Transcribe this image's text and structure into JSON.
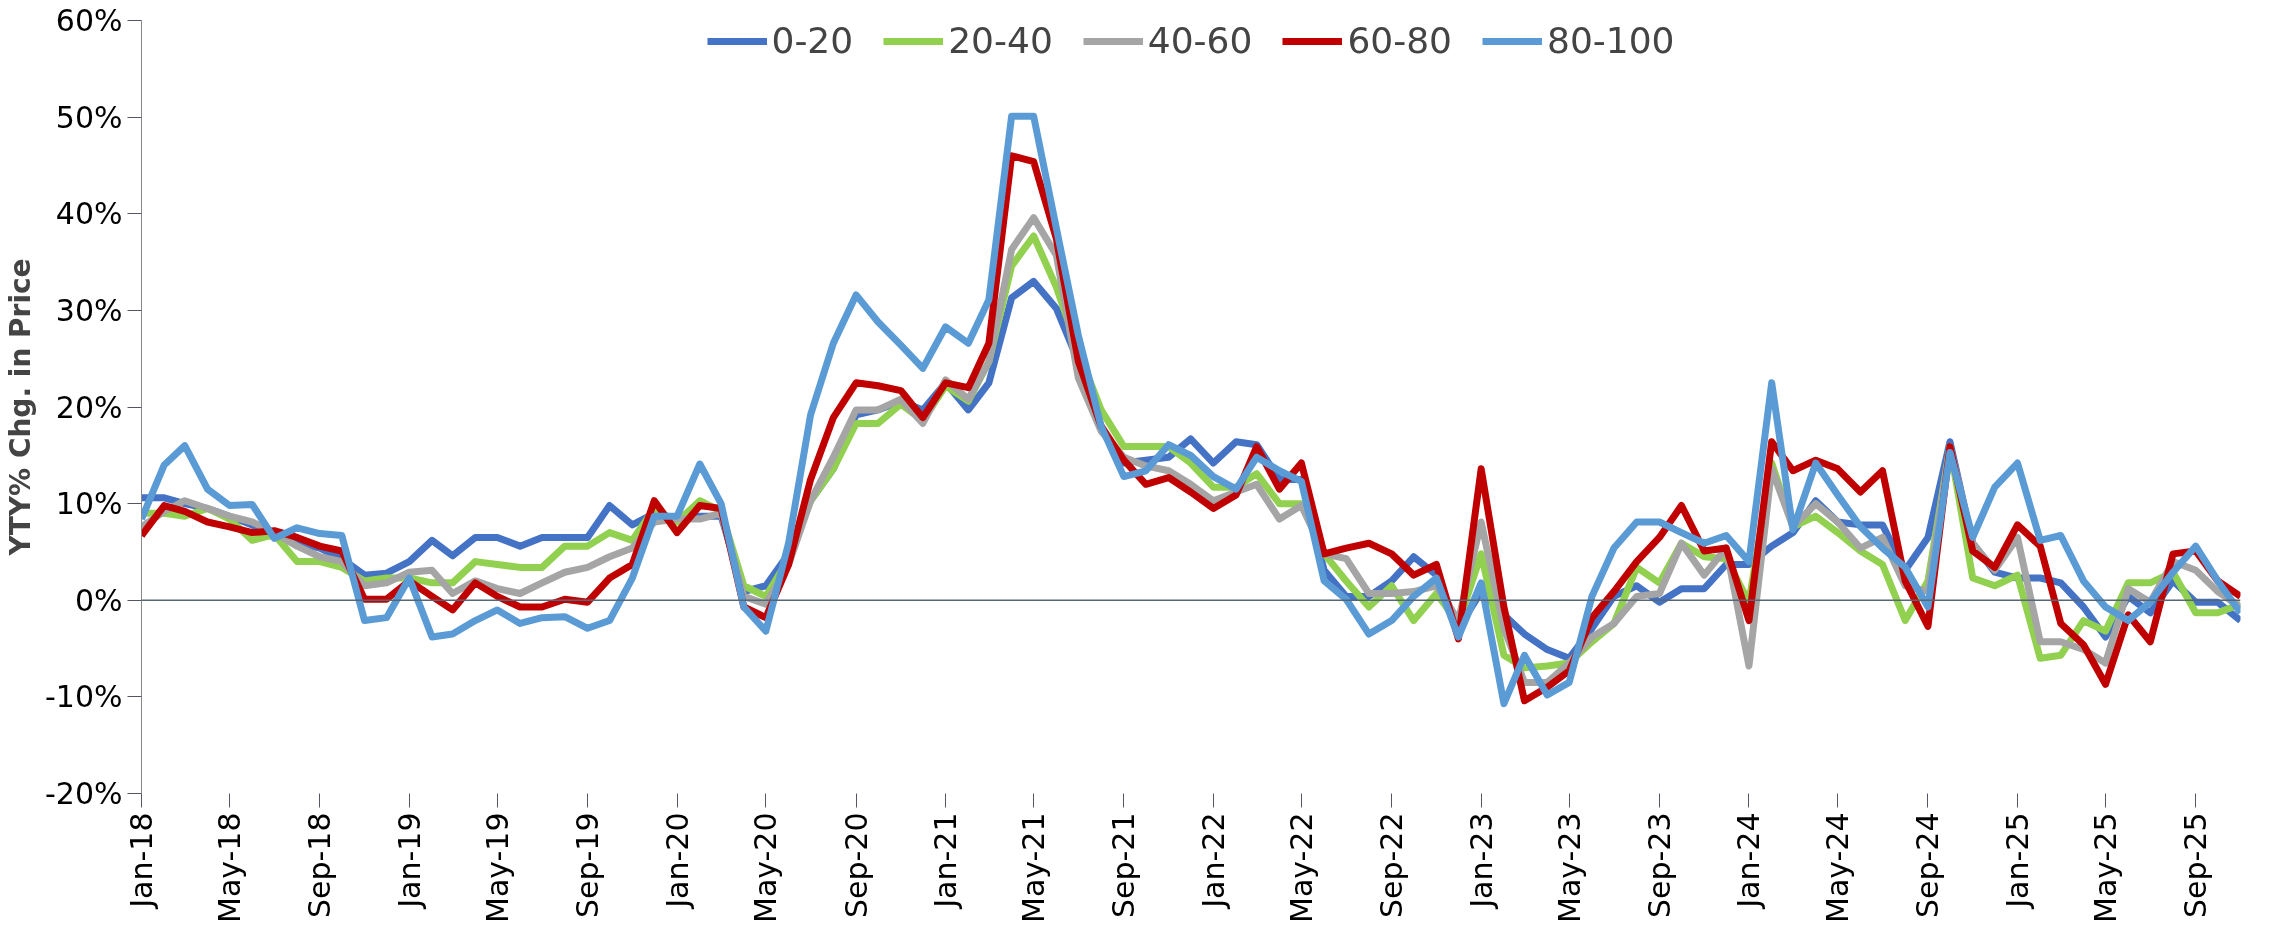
{
  "chart_data": {
    "type": "line",
    "ylabel": "YTY% Chg. in Price",
    "x": [
      "2018-01",
      "2018-02",
      "2018-03",
      "2018-04",
      "2018-05",
      "2018-06",
      "2018-07",
      "2018-08",
      "2018-09",
      "2018-10",
      "2018-11",
      "2018-12",
      "2019-01",
      "2019-02",
      "2019-03",
      "2019-04",
      "2019-05",
      "2019-06",
      "2019-07",
      "2019-08",
      "2019-09",
      "2019-10",
      "2019-11",
      "2019-12",
      "2020-01",
      "2020-02",
      "2020-03",
      "2020-04",
      "2020-05",
      "2020-06",
      "2020-07",
      "2020-08",
      "2020-09",
      "2020-10",
      "2020-11",
      "2020-12",
      "2021-01",
      "2021-02",
      "2021-03",
      "2021-04",
      "2021-05",
      "2021-06",
      "2021-07",
      "2021-08",
      "2021-09",
      "2021-10",
      "2021-11",
      "2021-12",
      "2022-01",
      "2022-02",
      "2022-03",
      "2022-04",
      "2022-05",
      "2022-06",
      "2022-07",
      "2022-08",
      "2022-09",
      "2022-10",
      "2022-11",
      "2022-12",
      "2023-01",
      "2023-02",
      "2023-03",
      "2023-04",
      "2023-05",
      "2023-06",
      "2023-07",
      "2023-08",
      "2023-09",
      "2023-10",
      "2023-11",
      "2023-12",
      "2024-01",
      "2024-02",
      "2024-03",
      "2024-04",
      "2024-05",
      "2024-06",
      "2024-07",
      "2024-08",
      "2024-09",
      "2024-10",
      "2024-11",
      "2024-12",
      "2025-01",
      "2025-02",
      "2025-03",
      "2025-04",
      "2025-05",
      "2025-06",
      "2025-07",
      "2025-08",
      "2025-09",
      "2025-10",
      "2025-11"
    ],
    "series": [
      {
        "name": "0-20",
        "color": "#4472c4",
        "values": [
          10.6,
          10.6,
          10,
          9.5,
          8.7,
          7.8,
          6.5,
          5.9,
          5.4,
          4.3,
          2.6,
          2.8,
          4,
          6.2,
          4.6,
          6.5,
          6.5,
          5.6,
          6.5,
          6.5,
          6.5,
          9.8,
          7.8,
          9,
          8.4,
          8.7,
          8.7,
          0.9,
          1.5,
          4.8,
          10.3,
          13.6,
          19.2,
          19.7,
          20.6,
          19.7,
          22.5,
          19.7,
          22.5,
          31.3,
          33,
          30.2,
          24.7,
          18,
          14.2,
          14.5,
          14.8,
          16.7,
          14.2,
          16.4,
          16.1,
          12.5,
          12.5,
          3.1,
          0.4,
          0.4,
          2,
          4.5,
          2.6,
          -2.9,
          0.9,
          -1.5,
          -3.5,
          -5.1,
          -6,
          -2.9,
          0.4,
          1.5,
          -0.2,
          1.2,
          1.2,
          3.7,
          3.7,
          5.6,
          7,
          10.3,
          8.1,
          7.8,
          7.8,
          3.1,
          6.5,
          16.4,
          5.9,
          2.9,
          2.3,
          2.3,
          1.8,
          -0.7,
          -3.8,
          0.4,
          -1.3,
          2,
          -0.2,
          -0.2,
          -2.1
        ]
      },
      {
        "name": "20-40",
        "color": "#92d050",
        "values": [
          9,
          9,
          8.7,
          9.5,
          8.4,
          6.2,
          6.8,
          4,
          4,
          3.4,
          2,
          2.3,
          2.3,
          1.8,
          1.8,
          4,
          3.7,
          3.4,
          3.4,
          5.6,
          5.6,
          7,
          6.2,
          9.5,
          8.1,
          10.3,
          9.2,
          1.5,
          0.4,
          4.3,
          10.3,
          13.6,
          18.3,
          18.3,
          20.3,
          18.6,
          22.2,
          20.6,
          24.7,
          34.6,
          37.7,
          32.4,
          25.8,
          19.7,
          15.9,
          15.9,
          15.9,
          14.2,
          11.7,
          11.7,
          13.1,
          10,
          10,
          4.8,
          2,
          -0.7,
          1.5,
          -2.1,
          0.7,
          -2.4,
          4.8,
          -5.7,
          -7,
          -6.8,
          -6.5,
          -4.3,
          -2.4,
          3.4,
          1.8,
          5.9,
          4.5,
          4.3,
          -0.2,
          14.2,
          7.6,
          8.7,
          7,
          5.1,
          3.7,
          -2.1,
          2,
          15.9,
          2.3,
          1.5,
          2.6,
          -6,
          -5.7,
          -2.1,
          -3.2,
          1.8,
          1.8,
          2.9,
          -1.3,
          -1.3,
          -0.4
        ]
      },
      {
        "name": "40-60",
        "color": "#a5a5a5",
        "values": [
          7.6,
          9.2,
          10.3,
          9.5,
          8.7,
          8.1,
          7,
          5.6,
          4.5,
          4,
          1.5,
          1.8,
          2.9,
          3.1,
          0.7,
          2,
          1.2,
          0.7,
          1.8,
          2.9,
          3.4,
          4.5,
          5.4,
          8.1,
          8.4,
          8.4,
          9,
          0.4,
          -0.4,
          3.7,
          10.3,
          14.8,
          19.7,
          19.7,
          20.8,
          18.3,
          22.8,
          20.8,
          24.7,
          36.3,
          39.6,
          35.7,
          23,
          17.5,
          14.8,
          13.9,
          13.4,
          12,
          10.3,
          11.2,
          12,
          8.4,
          9.8,
          4.8,
          4.3,
          0.7,
          0.7,
          0.9,
          1.5,
          -2.1,
          8.1,
          -2.9,
          -8.5,
          -8.5,
          -6.5,
          -3.8,
          -2.4,
          0.4,
          0.7,
          5.9,
          2.6,
          5.4,
          -6.8,
          13.6,
          7.6,
          10,
          8.1,
          5.4,
          6.5,
          1.5,
          0.9,
          15.9,
          5.9,
          3.1,
          6.5,
          -4.3,
          -4.3,
          -5.1,
          -6.5,
          1.2,
          -0.2,
          4,
          3.1,
          0.9,
          -0.7
        ]
      },
      {
        "name": "60-80",
        "color": "#c00000",
        "values": [
          6.7,
          9.8,
          9.2,
          8.1,
          7.6,
          7,
          7.2,
          6.5,
          5.6,
          5.1,
          0.1,
          0.1,
          2,
          0.4,
          -1,
          1.8,
          0.4,
          -0.7,
          -0.7,
          0.1,
          -0.2,
          2.3,
          3.7,
          10.3,
          7,
          9.8,
          9.5,
          -0.7,
          -1.8,
          3.7,
          12.5,
          18.9,
          22.5,
          22.2,
          21.7,
          18.9,
          22.5,
          22,
          26.6,
          46,
          45.4,
          37.4,
          24.7,
          18,
          14.5,
          12,
          12.7,
          11.2,
          9.5,
          10.9,
          15.9,
          11.5,
          14.2,
          4.8,
          5.4,
          5.9,
          4.8,
          2.6,
          3.7,
          -4,
          13.6,
          -0.7,
          -10.4,
          -9,
          -7.3,
          -1.8,
          0.9,
          4,
          6.5,
          9.8,
          5.1,
          5.4,
          -2.1,
          16.4,
          13.4,
          14.5,
          13.6,
          11.2,
          13.4,
          2,
          -2.7,
          15.9,
          5.1,
          3.4,
          7.8,
          5.6,
          -2.4,
          -4.6,
          -8.7,
          -1.5,
          -4.3,
          4.8,
          5.1,
          2,
          0.4
        ]
      },
      {
        "name": "80-100",
        "color": "#5b9bd5",
        "values": [
          8.4,
          14,
          16,
          11.5,
          9.8,
          9.9,
          6.4,
          7.5,
          6.9,
          6.7,
          -2.1,
          -1.8,
          2.3,
          -3.8,
          -3.5,
          -2.1,
          -1,
          -2.4,
          -1.8,
          -1.7,
          -2.9,
          -2.1,
          2.3,
          8.7,
          8.7,
          14.1,
          10,
          -0.7,
          -3.2,
          5.9,
          19.2,
          26.6,
          31.6,
          28.8,
          26.4,
          24,
          28.3,
          26.6,
          31.1,
          50.1,
          50.1,
          38.5,
          27.4,
          18,
          12.8,
          13.4,
          16.1,
          15,
          12.8,
          11.5,
          14.8,
          13.4,
          12.3,
          2,
          0.1,
          -3.5,
          -2.1,
          0.4,
          2.3,
          -3.8,
          1.8,
          -10.7,
          -5.7,
          -9.8,
          -8.5,
          0.4,
          5.4,
          8.1,
          8.1,
          7,
          5.9,
          6.7,
          4,
          22.5,
          7.3,
          14.2,
          10.9,
          7.6,
          5.4,
          3.4,
          -0.7,
          15.3,
          6.5,
          11.7,
          14.2,
          6.2,
          6.7,
          2,
          -0.7,
          -2.1,
          -0.2,
          2.9,
          5.6,
          2,
          -1.3
        ]
      }
    ],
    "xlim": [
      "2018-01",
      "2025-11"
    ],
    "xticks": [
      {
        "value": "2018-01",
        "label": "Jan-18"
      },
      {
        "value": "2018-05",
        "label": "May-18"
      },
      {
        "value": "2018-09",
        "label": "Sep-18"
      },
      {
        "value": "2019-01",
        "label": "Jan-19"
      },
      {
        "value": "2019-05",
        "label": "May-19"
      },
      {
        "value": "2019-09",
        "label": "Sep-19"
      },
      {
        "value": "2020-01",
        "label": "Jan-20"
      },
      {
        "value": "2020-05",
        "label": "May-20"
      },
      {
        "value": "2020-09",
        "label": "Sep-20"
      },
      {
        "value": "2021-01",
        "label": "Jan-21"
      },
      {
        "value": "2021-05",
        "label": "May-21"
      },
      {
        "value": "2021-09",
        "label": "Sep-21"
      },
      {
        "value": "2022-01",
        "label": "Jan-22"
      },
      {
        "value": "2022-05",
        "label": "May-22"
      },
      {
        "value": "2022-09",
        "label": "Sep-22"
      },
      {
        "value": "2023-01",
        "label": "Jan-23"
      },
      {
        "value": "2023-05",
        "label": "May-23"
      },
      {
        "value": "2023-09",
        "label": "Sep-23"
      },
      {
        "value": "2024-01",
        "label": "Jan-24"
      },
      {
        "value": "2024-05",
        "label": "May-24"
      },
      {
        "value": "2024-09",
        "label": "Sep-24"
      },
      {
        "value": "2025-01",
        "label": "Jan-25"
      },
      {
        "value": "2025-05",
        "label": "May-25"
      },
      {
        "value": "2025-09",
        "label": "Sep-25"
      }
    ],
    "ylim": [
      -20,
      60
    ],
    "yticks": [
      {
        "value": -20,
        "label": "-20%"
      },
      {
        "value": -10,
        "label": "-10%"
      },
      {
        "value": 0,
        "label": "0%"
      },
      {
        "value": 10,
        "label": "10%"
      },
      {
        "value": 20,
        "label": "20%"
      },
      {
        "value": 30,
        "label": "30%"
      },
      {
        "value": 40,
        "label": "40%"
      },
      {
        "value": 50,
        "label": "50%"
      },
      {
        "value": 60,
        "label": "60%"
      }
    ],
    "ref_lines": [
      {
        "axis": "y",
        "value": 0,
        "color": "#556677"
      }
    ],
    "grid": false,
    "legend": "top",
    "marker": "none",
    "line_style": "solid"
  }
}
